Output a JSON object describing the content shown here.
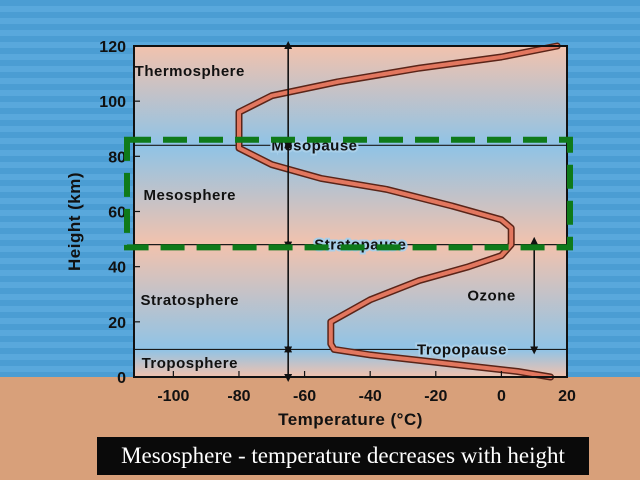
{
  "caption": "Mesosphere - temperature decreases with height",
  "colors": {
    "background": "#4d9fd4",
    "ground": "#d8a07a",
    "warm_band": "#f2c2ad",
    "cool_band": "#8fc3e6",
    "profile_line": "#e2775f",
    "highlight_box": "#0f7a1a",
    "caption_bg": "#0a0a0a",
    "caption_text": "#ffffff"
  },
  "chart_data": {
    "type": "line",
    "title": "",
    "xlabel": "Temperature (°C)",
    "ylabel": "Height (km)",
    "xlim": [
      -112,
      20
    ],
    "ylim": [
      0,
      120
    ],
    "x_ticks": [
      -100,
      -80,
      -60,
      -40,
      -20,
      0,
      20
    ],
    "y_ticks": [
      0,
      20,
      40,
      60,
      80,
      100,
      120
    ],
    "series": [
      {
        "x": [
          15,
          5,
          -10,
          -25,
          -40,
          -51,
          -52,
          -52,
          -40,
          -25,
          -10,
          0,
          3,
          3,
          0,
          -15,
          -35,
          -55,
          -70,
          -80,
          -80,
          -80,
          -70,
          -50,
          -25,
          0,
          17
        ],
        "y": [
          0,
          2,
          4,
          6,
          8,
          10,
          12,
          20,
          28,
          35,
          40,
          44,
          48,
          54,
          57,
          62,
          68,
          72,
          77,
          83,
          90,
          96,
          102,
          107,
          112,
          116,
          120
        ]
      }
    ],
    "layers": [
      {
        "label": "Troposphere",
        "bottom": 0,
        "top": 10
      },
      {
        "label": "Stratosphere",
        "bottom": 10,
        "top": 48
      },
      {
        "label": "Mesosphere",
        "bottom": 48,
        "top": 84
      },
      {
        "label": "Thermosphere",
        "bottom": 84,
        "top": 120
      }
    ],
    "boundaries": [
      {
        "label": "Tropopause",
        "height": 10
      },
      {
        "label": "Stratopause",
        "height": 48
      },
      {
        "label": "Mesopause",
        "height": 84
      }
    ],
    "annotation": {
      "label": "Ozone",
      "from": 10,
      "to": 49,
      "x": 10
    },
    "highlight": {
      "from": 47,
      "to": 86
    }
  }
}
